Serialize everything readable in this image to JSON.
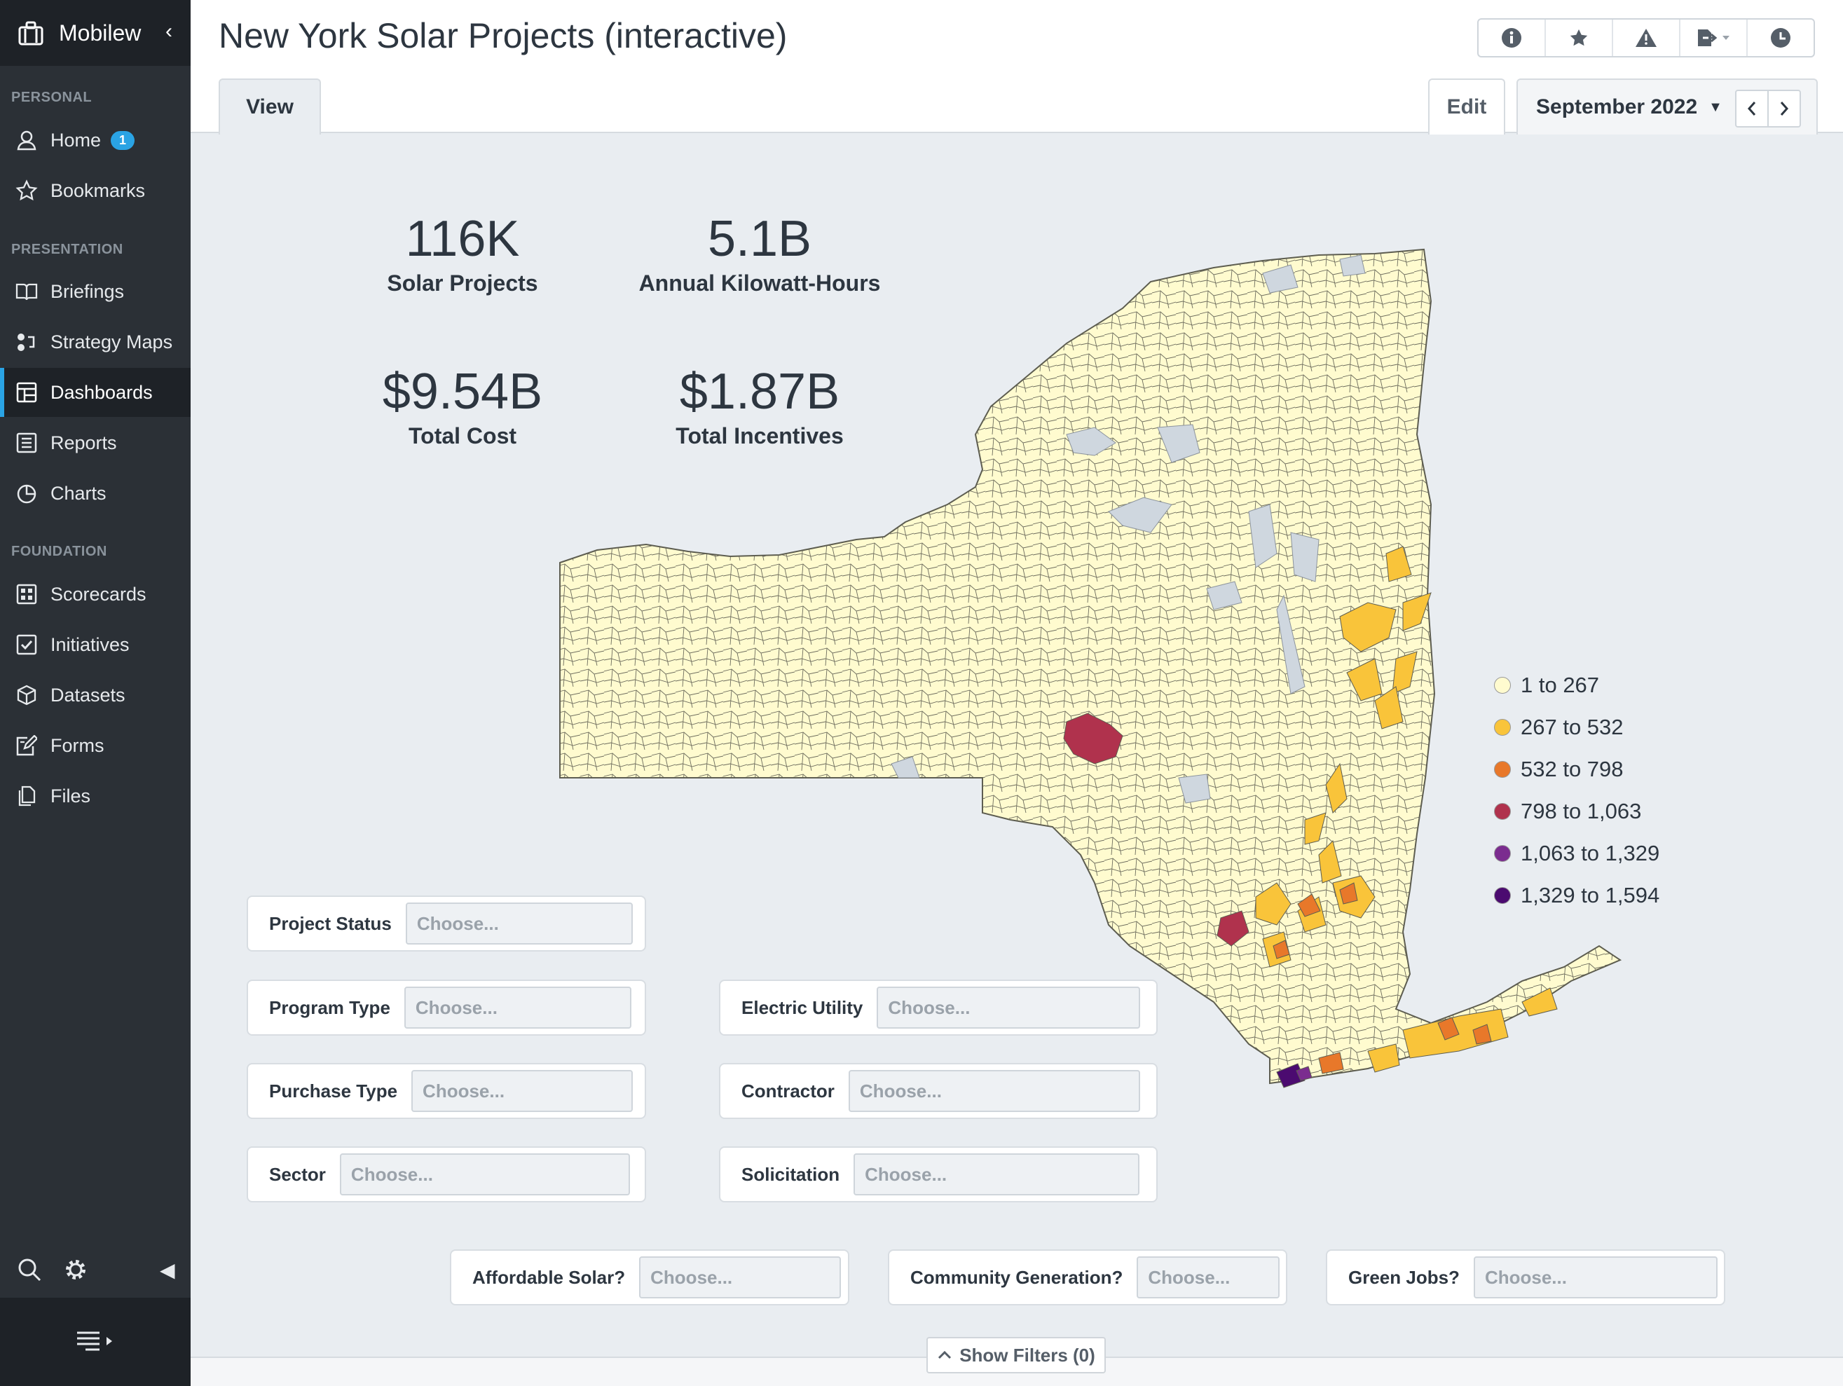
{
  "app": {
    "name": "Mobilew",
    "collapse_icon": "chevron-left-icon"
  },
  "sidebar": {
    "sections": [
      "PERSONAL",
      "PRESENTATION",
      "FOUNDATION"
    ],
    "items": [
      {
        "label": "Home",
        "badge": "1",
        "icon": "user-icon"
      },
      {
        "label": "Bookmarks",
        "icon": "star-icon"
      },
      {
        "label": "Briefings",
        "icon": "book-icon"
      },
      {
        "label": "Strategy Maps",
        "icon": "strategy-map-icon"
      },
      {
        "label": "Dashboards",
        "icon": "dashboard-icon",
        "active": true
      },
      {
        "label": "Reports",
        "icon": "report-icon"
      },
      {
        "label": "Charts",
        "icon": "pie-chart-icon"
      },
      {
        "label": "Scorecards",
        "icon": "scorecard-icon"
      },
      {
        "label": "Initiatives",
        "icon": "checkbox-icon"
      },
      {
        "label": "Datasets",
        "icon": "cube-icon"
      },
      {
        "label": "Forms",
        "icon": "form-icon"
      },
      {
        "label": "Files",
        "icon": "files-icon"
      }
    ]
  },
  "header": {
    "title": "New York Solar Projects (interactive)",
    "tab_view": "View",
    "tab_edit": "Edit",
    "period": "September 2022"
  },
  "colors": {
    "accent": "#2aa3e4",
    "sidebar_bg": "#2b3036",
    "map_base": "#fffbcf"
  },
  "kpis": [
    {
      "value": "116K",
      "label": "Solar Projects"
    },
    {
      "value": "5.1B",
      "label": "Annual Kilowatt-Hours"
    },
    {
      "value": "$9.54B",
      "label": "Total Cost"
    },
    {
      "value": "$1.87B",
      "label": "Total Incentives"
    }
  ],
  "legend": [
    {
      "label": "1 to 267",
      "color": "#fffbcf"
    },
    {
      "label": "267 to 532",
      "color": "#f9c43a"
    },
    {
      "label": "532 to 798",
      "color": "#e8782a"
    },
    {
      "label": "798 to 1,063",
      "color": "#b0324d"
    },
    {
      "label": "1,063 to 1,329",
      "color": "#7b2c8f"
    },
    {
      "label": "1,329 to 1,594",
      "color": "#4b0b70"
    }
  ],
  "filters": {
    "placeholder": "Choose...",
    "project_status": "Project Status",
    "program_type": "Program Type",
    "purchase_type": "Purchase Type",
    "sector": "Sector",
    "electric_utility": "Electric Utility",
    "contractor": "Contractor",
    "solicitation": "Solicitation",
    "affordable_solar": "Affordable Solar?",
    "community_generation": "Community Generation?",
    "green_jobs": "Green Jobs?"
  },
  "show_filters": "Show Filters (0)"
}
